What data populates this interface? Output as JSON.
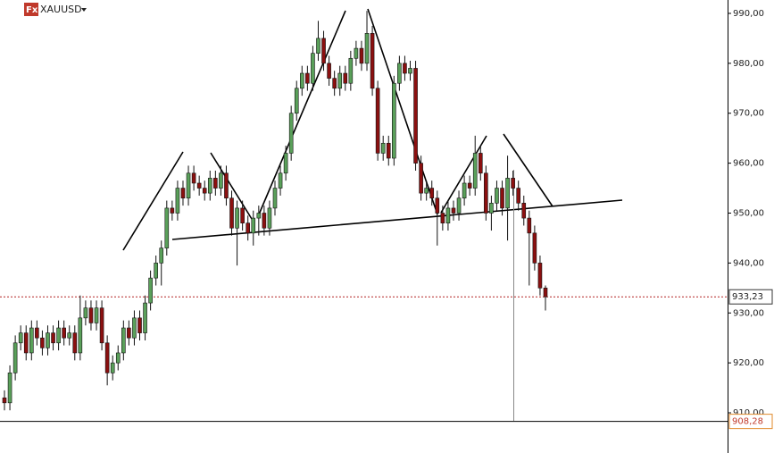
{
  "chart_data": {
    "type": "candlestick",
    "title": "XAUUSD",
    "icon_label": "Fx",
    "up_color": "#5aa05a",
    "down_color": "#8b1010",
    "ylim": [
      901.95,
      992.68
    ],
    "yticks": [
      {
        "value": 910,
        "label": "910,00"
      },
      {
        "value": 920,
        "label": "920,00"
      },
      {
        "value": 930,
        "label": "930,00"
      },
      {
        "value": 940,
        "label": "940,00"
      },
      {
        "value": 950,
        "label": "950,00"
      },
      {
        "value": 960,
        "label": "960,00"
      },
      {
        "value": 970,
        "label": "970,00"
      },
      {
        "value": 980,
        "label": "980,00"
      },
      {
        "value": 990,
        "label": "990,00"
      }
    ],
    "price_marker": {
      "value": 933.23,
      "label": "933,23"
    },
    "crosshair": {
      "value": 908.28,
      "label": "908,28"
    },
    "ohlc": [
      [
        913,
        914.5,
        910.5,
        912
      ],
      [
        912,
        919.5,
        910.5,
        918
      ],
      [
        918,
        925.5,
        916.5,
        924
      ],
      [
        924,
        927.5,
        922.5,
        926
      ],
      [
        926,
        927.5,
        920.5,
        922
      ],
      [
        922,
        928.5,
        920.5,
        927
      ],
      [
        927,
        928.5,
        923.5,
        925
      ],
      [
        925,
        926.5,
        921.5,
        923
      ],
      [
        923,
        927.5,
        921.5,
        926
      ],
      [
        926,
        927.5,
        922.5,
        924
      ],
      [
        924,
        928.5,
        922.5,
        927
      ],
      [
        927,
        928.5,
        923.5,
        925
      ],
      [
        925,
        927.5,
        923.5,
        926
      ],
      [
        926,
        927.5,
        920.5,
        922
      ],
      [
        922,
        933.5,
        920.5,
        929
      ],
      [
        929,
        932.5,
        927.5,
        931
      ],
      [
        931,
        932.5,
        926.5,
        928
      ],
      [
        928,
        932.5,
        926.5,
        931
      ],
      [
        931,
        932.5,
        922.5,
        924
      ],
      [
        924,
        925.5,
        915.5,
        918
      ],
      [
        918,
        921.5,
        916.5,
        920
      ],
      [
        920,
        923.5,
        918.5,
        922
      ],
      [
        922,
        928.5,
        920.5,
        927
      ],
      [
        927,
        928.5,
        923.5,
        925
      ],
      [
        925,
        930.5,
        923.5,
        929
      ],
      [
        929,
        930.5,
        924.5,
        926
      ],
      [
        926,
        933.5,
        924.5,
        932
      ],
      [
        932,
        938.5,
        930.5,
        937
      ],
      [
        937,
        941.5,
        935.5,
        940
      ],
      [
        940,
        944.5,
        935.5,
        943
      ],
      [
        943,
        952.5,
        941.5,
        951
      ],
      [
        951,
        952.5,
        948.5,
        950
      ],
      [
        950,
        956.5,
        948.5,
        955
      ],
      [
        955,
        956.5,
        951.5,
        953
      ],
      [
        953,
        959.5,
        951.5,
        958
      ],
      [
        958,
        959.5,
        954.5,
        956
      ],
      [
        956,
        957.5,
        953.5,
        955
      ],
      [
        955,
        956.5,
        952.5,
        954
      ],
      [
        954,
        958.5,
        952.5,
        957
      ],
      [
        957,
        958.5,
        953.5,
        955
      ],
      [
        955,
        959.5,
        953.5,
        958
      ],
      [
        958,
        959.5,
        951.5,
        953
      ],
      [
        953,
        954.5,
        945.5,
        947
      ],
      [
        947,
        952.5,
        939.5,
        951
      ],
      [
        951,
        952.5,
        946.5,
        948
      ],
      [
        948,
        949.5,
        944.5,
        946
      ],
      [
        946,
        950.5,
        943.5,
        949
      ],
      [
        949,
        951.5,
        945.5,
        950
      ],
      [
        950,
        951.5,
        945.5,
        947
      ],
      [
        947,
        952.5,
        945.5,
        951
      ],
      [
        951,
        956.5,
        949.5,
        955
      ],
      [
        955,
        959.5,
        953.5,
        958
      ],
      [
        958,
        963.5,
        956.5,
        962
      ],
      [
        962,
        971.5,
        960.5,
        970
      ],
      [
        970,
        976.5,
        968.5,
        975
      ],
      [
        975,
        979.5,
        973.5,
        978
      ],
      [
        978,
        979.5,
        974.5,
        976
      ],
      [
        976,
        983.5,
        974.5,
        982
      ],
      [
        982,
        988.5,
        980.5,
        985
      ],
      [
        985,
        986.5,
        978.5,
        980
      ],
      [
        980,
        981.5,
        975.5,
        977
      ],
      [
        977,
        978.5,
        973.5,
        975
      ],
      [
        975,
        979.5,
        973.5,
        978
      ],
      [
        978,
        979.5,
        974.5,
        976
      ],
      [
        976,
        982.5,
        974.5,
        981
      ],
      [
        981,
        984.5,
        979.5,
        983
      ],
      [
        983,
        984.5,
        978.5,
        980
      ],
      [
        980,
        990.5,
        978.5,
        986
      ],
      [
        986,
        987.5,
        973.5,
        975
      ],
      [
        975,
        976.5,
        960.5,
        962
      ],
      [
        962,
        965.5,
        960.5,
        964
      ],
      [
        964,
        965.5,
        959.5,
        961
      ],
      [
        961,
        977.5,
        959.5,
        976
      ],
      [
        976,
        981.5,
        974.5,
        980
      ],
      [
        980,
        981.5,
        976.5,
        978
      ],
      [
        978,
        980.5,
        976.5,
        979
      ],
      [
        979,
        980.5,
        958.5,
        960
      ],
      [
        960,
        961.5,
        952.5,
        954
      ],
      [
        954,
        956.5,
        952.5,
        955
      ],
      [
        955,
        956.5,
        951.5,
        953
      ],
      [
        953,
        954.5,
        943.5,
        950
      ],
      [
        950,
        951.5,
        946.5,
        948
      ],
      [
        948,
        952.5,
        946.5,
        951
      ],
      [
        951,
        952.5,
        948.5,
        950
      ],
      [
        950,
        954.5,
        948.5,
        953
      ],
      [
        953,
        957.5,
        951.5,
        956
      ],
      [
        956,
        957.5,
        953.5,
        955
      ],
      [
        955,
        965.5,
        953.5,
        962
      ],
      [
        962,
        963.5,
        956.5,
        958
      ],
      [
        958,
        959.5,
        948.5,
        950
      ],
      [
        950,
        953.5,
        946.5,
        952
      ],
      [
        952,
        956.5,
        950.5,
        955
      ],
      [
        955,
        956.5,
        949.5,
        951
      ],
      [
        951,
        961.5,
        944.5,
        957
      ],
      [
        957,
        958.5,
        953.5,
        955
      ],
      [
        955,
        956.5,
        950.5,
        952
      ],
      [
        952,
        953.5,
        947.5,
        949
      ],
      [
        949,
        950.5,
        935.5,
        946
      ],
      [
        946,
        947.5,
        938.5,
        940
      ],
      [
        940,
        941.5,
        933.5,
        935
      ],
      [
        935,
        935.5,
        930.5,
        933.23
      ]
    ]
  }
}
